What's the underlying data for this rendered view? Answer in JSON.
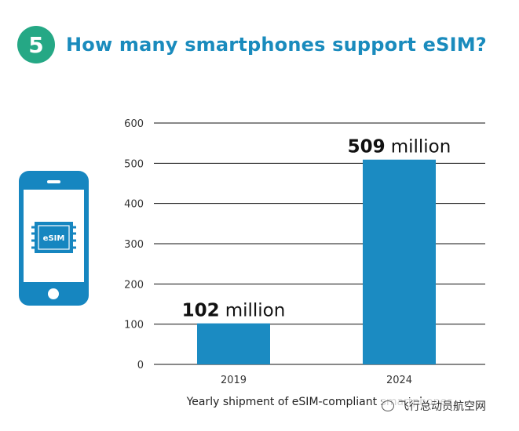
{
  "header": {
    "badge_number": "5",
    "title": "How many smartphones support eSIM?"
  },
  "phone_icon": {
    "chip_label": "eSIM",
    "icon": "smartphone-esim-icon"
  },
  "colors": {
    "accent": "#1a8bbd",
    "badge": "#25a885",
    "bar": "#1b8bc2",
    "phone": "#1686c0"
  },
  "chart_data": {
    "type": "bar",
    "categories": [
      "2019",
      "2024"
    ],
    "values": [
      102,
      509
    ],
    "data_labels": [
      {
        "number": "102",
        "unit": "million"
      },
      {
        "number": "509",
        "unit": "million"
      }
    ],
    "xlabel": "Yearly shipment of eSIM-compliant smartphones",
    "ylabel": "",
    "ylim": [
      0,
      600
    ],
    "yticks": [
      "0",
      "100",
      "200",
      "300",
      "400",
      "500",
      "600"
    ],
    "grid": true
  },
  "watermark": "飞行总动员航空网"
}
